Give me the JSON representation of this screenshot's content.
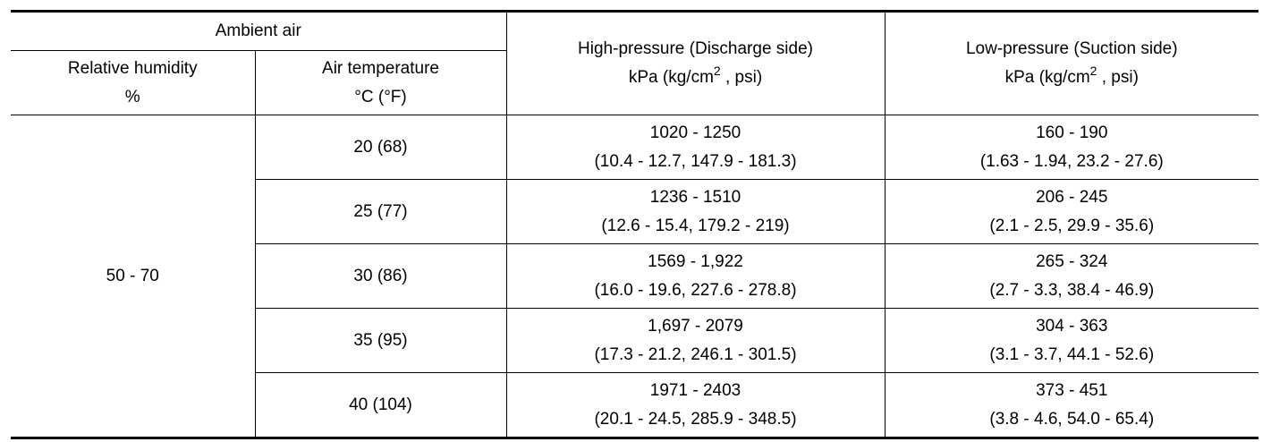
{
  "table": {
    "header": {
      "ambient_air": "Ambient air",
      "relative_humidity": [
        "Relative humidity",
        "%"
      ],
      "air_temperature": [
        "Air temperature",
        "°C (°F)"
      ],
      "high_pressure": {
        "title": "High-pressure (Discharge side)",
        "unit": "kPa (kg/cm",
        "unit_sup": "2",
        "unit_tail": " , psi)"
      },
      "low_pressure": {
        "title": "Low-pressure (Suction side)",
        "unit": "kPa (kg/cm",
        "unit_sup": "2",
        "unit_tail": " , psi)"
      }
    },
    "humidity": "50 - 70",
    "rows": [
      {
        "temperature": "20 (68)",
        "high": [
          "1020 - 1250",
          "(10.4 - 12.7, 147.9 - 181.3)"
        ],
        "low": [
          "160 - 190",
          "(1.63 - 1.94, 23.2 - 27.6)"
        ]
      },
      {
        "temperature": "25 (77)",
        "high": [
          "1236 - 1510",
          "(12.6 - 15.4, 179.2 - 219)"
        ],
        "low": [
          "206 - 245",
          "(2.1 - 2.5, 29.9 - 35.6)"
        ]
      },
      {
        "temperature": "30 (86)",
        "high": [
          "1569 - 1,922",
          "(16.0 - 19.6, 227.6 - 278.8)"
        ],
        "low": [
          "265 - 324",
          "(2.7 - 3.3, 38.4 - 46.9)"
        ]
      },
      {
        "temperature": "35 (95)",
        "high": [
          "1,697 - 2079",
          "(17.3 - 21.2, 246.1 - 301.5)"
        ],
        "low": [
          "304 - 363",
          "(3.1 - 3.7, 44.1 - 52.6)"
        ]
      },
      {
        "temperature": "40 (104)",
        "high": [
          "1971 - 2403",
          "(20.1 - 24.5, 285.9 - 348.5)"
        ],
        "low": [
          "373 - 451",
          "(3.8 - 4.6, 54.0 - 65.4)"
        ]
      }
    ]
  }
}
